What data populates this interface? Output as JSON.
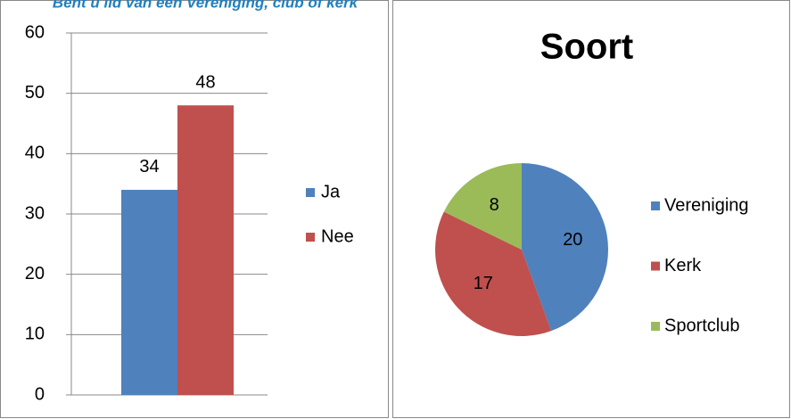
{
  "chart_data": [
    {
      "type": "bar",
      "title": "Bent u lid van een Vereniging, club of kerk",
      "categories": [
        null
      ],
      "series": [
        {
          "name": "Ja",
          "color": "#4f81bd",
          "values": [
            34
          ]
        },
        {
          "name": "Nee",
          "color": "#c0504d",
          "values": [
            48
          ]
        }
      ],
      "ylim": [
        0,
        60
      ],
      "yticks": [
        0,
        10,
        20,
        30,
        40,
        50,
        60
      ],
      "grid": true,
      "legend": "right"
    },
    {
      "type": "pie",
      "title": "Soort",
      "categories": [
        "Vereniging",
        "Kerk",
        "Sportclub"
      ],
      "values": [
        20,
        17,
        8
      ],
      "colors": [
        "#4f81bd",
        "#c0504d",
        "#9bbb59"
      ],
      "legend": "right"
    }
  ]
}
